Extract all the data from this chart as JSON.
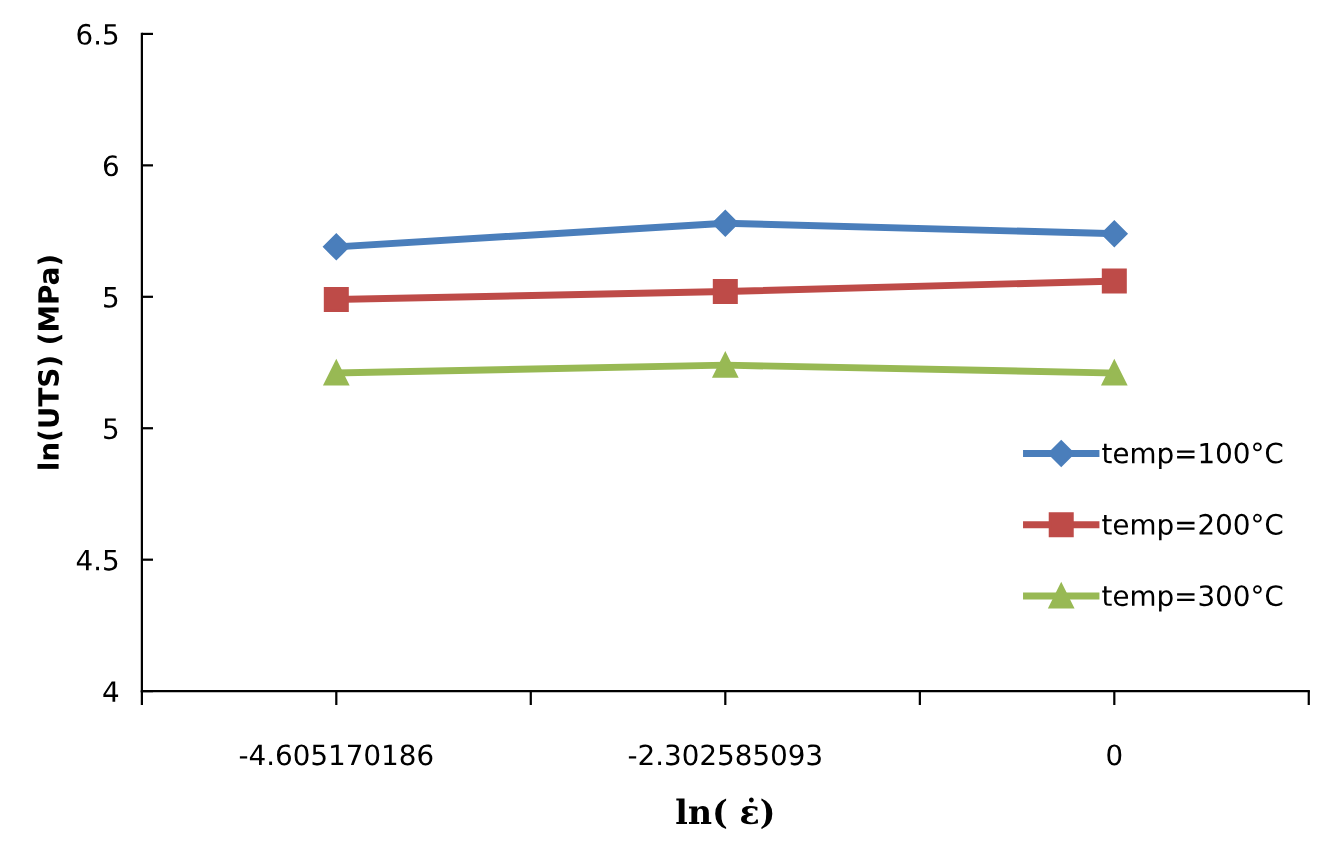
{
  "chart_data": {
    "type": "line",
    "xlabel": "ln( ε̇)",
    "ylabel": "ln(UTS) (MPa)",
    "x": [
      -4.605170186,
      -2.302585093,
      0
    ],
    "series": [
      {
        "name": "temp=100°C",
        "color": "#4a7ebb",
        "values": [
          5.69,
          5.78,
          5.74
        ],
        "marker": "diamond"
      },
      {
        "name": "temp=200°C",
        "color": "#be4b48",
        "values": [
          5.49,
          5.52,
          5.56
        ],
        "marker": "square"
      },
      {
        "name": "temp=300°C",
        "color": "#98b954",
        "values": [
          5.21,
          5.24,
          5.21
        ],
        "marker": "triangle"
      }
    ],
    "xlim": [
      -5.756,
      1.151
    ],
    "xticks": [
      {
        "value": -5.756,
        "label": null
      },
      -4.605170186,
      {
        "value": -3.454,
        "label": null
      },
      -2.302585093,
      {
        "value": -1.151,
        "label": null
      },
      0,
      {
        "value": 1.151,
        "label": null
      }
    ],
    "ylim": [
      4,
      6.5
    ],
    "yticks": [
      4,
      4.5,
      5,
      {
        "value": 5.5,
        "label": "5"
      },
      6,
      6.5
    ],
    "grid": false,
    "legend": "right",
    "line_style": "solid"
  }
}
